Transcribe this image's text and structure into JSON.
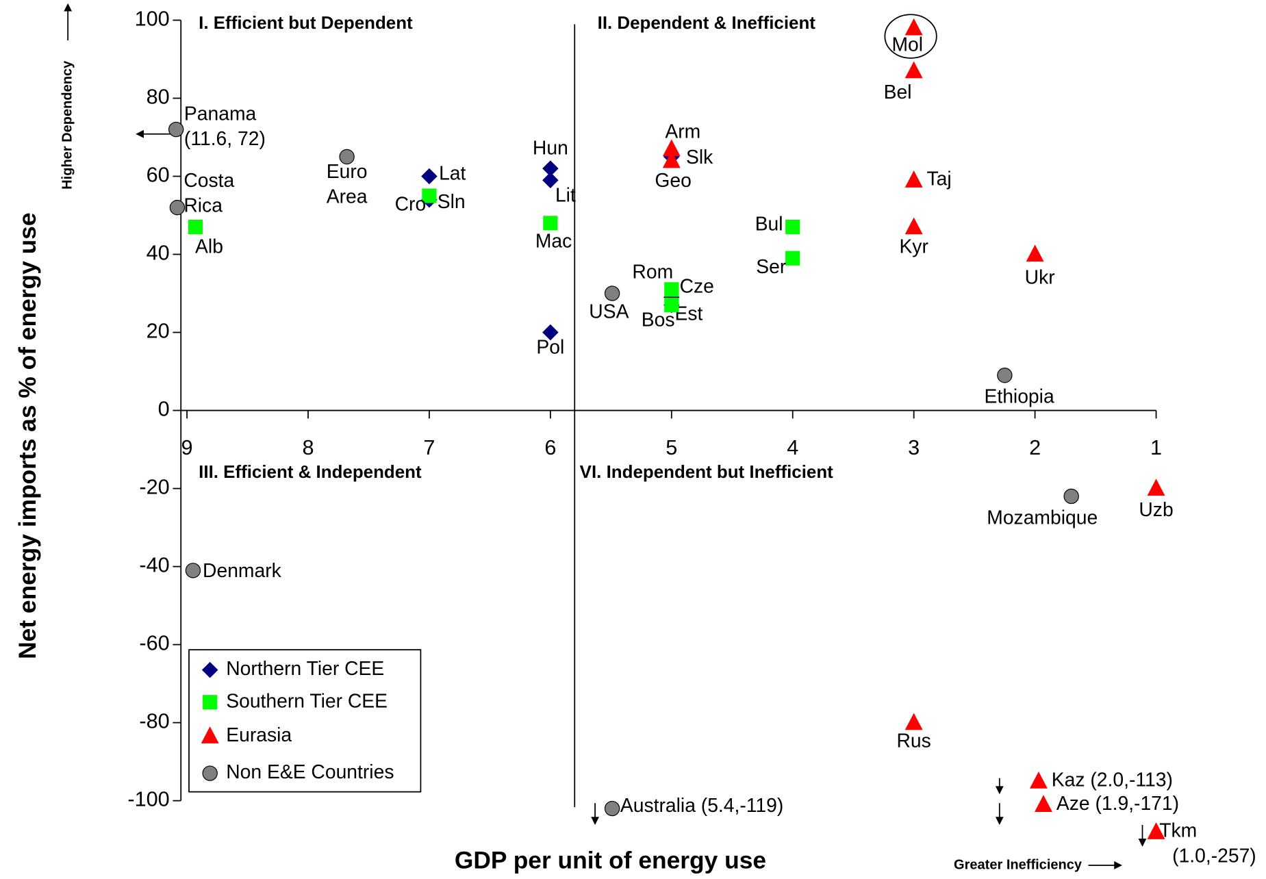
{
  "chart_data": {
    "type": "scatter",
    "x_label": "GDP per unit of energy use",
    "y_label": "Net energy imports as % of energy use",
    "xlim": [
      9.05,
      1
    ],
    "xticks": [
      9,
      8,
      7,
      6,
      5,
      4,
      3,
      2,
      1
    ],
    "ylim": [
      -100,
      100
    ],
    "yticks": [
      100,
      80,
      60,
      40,
      20,
      0,
      -20,
      -40,
      -60,
      -80,
      -100
    ],
    "x_divider": 5.8,
    "quadrant_labels": [
      "I. Efficient but Dependent",
      "II. Dependent & Inefficient",
      "III. Efficient & Independent",
      "VI. Independent but Inefficient"
    ],
    "annotations": [
      "Higher Dependency",
      "Greater Inefficiency"
    ],
    "legend": "lower left",
    "series": [
      {
        "name": "Northern Tier CEE",
        "marker": "diamond",
        "color": "#000080",
        "x": [
          7,
          7,
          6,
          6,
          6,
          5,
          5,
          5
        ],
        "values": [
          60,
          54,
          62,
          59,
          20,
          65,
          29,
          27
        ],
        "labels": [
          "Lat",
          "Sln",
          "Hun",
          "Lit",
          "Pol",
          "Slk",
          "Cze",
          "Est"
        ]
      },
      {
        "name": "Southern Tier CEE",
        "marker": "square",
        "color": "#00ff00",
        "x": [
          8.93,
          7,
          6,
          4,
          4,
          5,
          5
        ],
        "values": [
          47,
          55,
          48,
          47,
          39,
          31,
          27
        ],
        "labels": [
          "Alb",
          "Cro",
          "Mac",
          "Bul",
          "Ser",
          "Rom",
          "Bos"
        ]
      },
      {
        "name": "Eurasia",
        "marker": "triangle",
        "color": "#ff0000",
        "x": [
          3,
          3,
          5,
          5,
          3,
          3,
          2,
          1,
          3,
          1.97,
          1.93,
          1.0
        ],
        "values": [
          98,
          87,
          67,
          64,
          59,
          47,
          40,
          -20,
          -80,
          -95,
          -101,
          -108
        ],
        "labels": [
          "Mol",
          "Bel",
          "Arm",
          "Geo",
          "Taj",
          "Kyr",
          "Ukr",
          "Uzb",
          "Rus",
          "Kaz (2.0,-113)",
          "Aze (1.9,-171)",
          [
            "Tkm",
            "(1.0,-257)"
          ]
        ]
      },
      {
        "name": "Non E&E Countries",
        "marker": "circle",
        "color": "#808080",
        "x": [
          9.09,
          9.08,
          7.68,
          8.95,
          5.49,
          2.25,
          1.7,
          5.49
        ],
        "values": [
          72,
          52,
          65,
          -41,
          30,
          9,
          -22,
          -102
        ],
        "labels": [
          [
            "Panama",
            "(11.6, 72)"
          ],
          [
            "Costa",
            "Rica"
          ],
          [
            "Euro",
            "Area"
          ],
          "Denmark",
          "USA",
          "Ethiopia",
          "Mozambique",
          "Australia (5.4,-119)"
        ]
      }
    ]
  }
}
